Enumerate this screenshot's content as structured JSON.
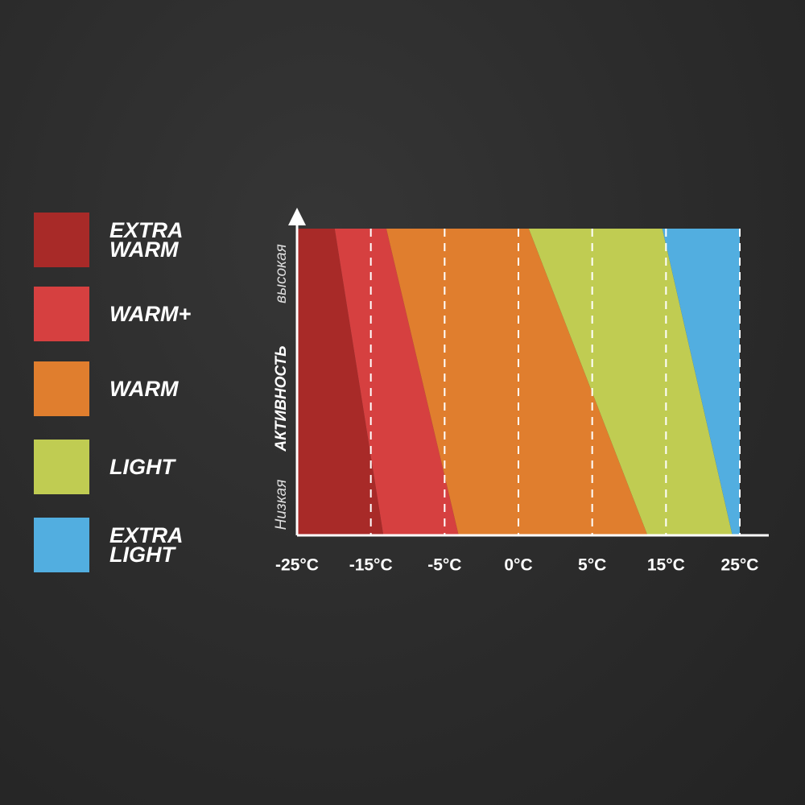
{
  "chart_data": {
    "type": "band",
    "series": [
      {
        "name": "EXTRA WARM",
        "color": "#a82a28"
      },
      {
        "name": "WARM+",
        "color": "#d64040"
      },
      {
        "name": "WARM",
        "color": "#e07e2e"
      },
      {
        "name": "LIGHT",
        "color": "#c0cc52"
      },
      {
        "name": "EXTRA LIGHT",
        "color": "#52aee0"
      }
    ],
    "boundaries": [
      {
        "low_activity": 1.17,
        "high_activity": 0.51
      },
      {
        "low_activity": 2.19,
        "high_activity": 1.21
      },
      {
        "low_activity": 4.75,
        "high_activity": 3.14
      },
      {
        "low_activity": 5.9,
        "high_activity": 4.95
      }
    ],
    "xlim": [
      0,
      6
    ],
    "xticks": [
      {
        "value": 0,
        "label": "-25°C"
      },
      {
        "value": 1,
        "label": "-15°C"
      },
      {
        "value": 2,
        "label": "-5°C"
      },
      {
        "value": 3,
        "label": "0°C"
      },
      {
        "value": 4,
        "label": "5°C"
      },
      {
        "value": 5,
        "label": "15°C"
      },
      {
        "value": 6,
        "label": "25°C"
      }
    ],
    "y_axis_labels": {
      "low": "Низкая",
      "title": "АКТИВНОСТЬ",
      "high": "высокая"
    }
  }
}
